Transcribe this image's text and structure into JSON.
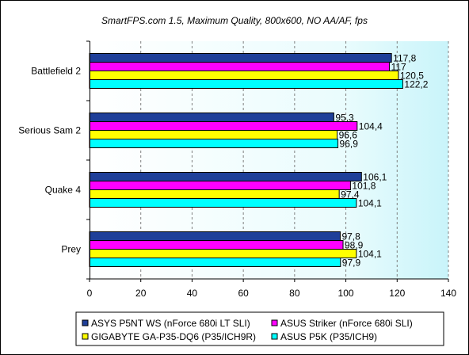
{
  "chart_data": {
    "type": "bar",
    "orientation": "horizontal",
    "title": "SmartFPS.com 1.5, Maximum Quality, 800x600, NO AA/AF, fps",
    "categories": [
      "Battlefield 2",
      "Serious Sam 2",
      "Quake 4",
      "Prey"
    ],
    "series": [
      {
        "name": "ASYS P5NT WS (nForce 680i LT SLI)",
        "color": "#1f3f99",
        "values": [
          117.8,
          95.3,
          106.1,
          97.8
        ],
        "labels": [
          "117,8",
          "95,3",
          "106,1",
          "97,8"
        ]
      },
      {
        "name": "ASUS Striker (nForce 680i SLI)",
        "color": "#ff00ff",
        "values": [
          117,
          104.4,
          101.8,
          98.9
        ],
        "labels": [
          "117",
          "104,4",
          "101,8",
          "98,9"
        ]
      },
      {
        "name": "GIGABYTE GA-P35-DQ6 (P35/ICH9R)",
        "color": "#ffff00",
        "values": [
          120.5,
          96.6,
          97.4,
          104.1
        ],
        "labels": [
          "120,5",
          "96,6",
          "97,4",
          "104,1"
        ]
      },
      {
        "name": "ASUS P5K (P35/ICH9)",
        "color": "#00ffff",
        "values": [
          122.2,
          96.9,
          104.1,
          97.9
        ],
        "labels": [
          "122,2",
          "96,9",
          "104,1",
          "97,9"
        ]
      }
    ],
    "xlim": [
      0,
      140
    ],
    "xticks": [
      "0",
      "20",
      "40",
      "60",
      "80",
      "100",
      "120",
      "140"
    ],
    "grid": "vertical-dashed",
    "legend": "bottom",
    "colors": {
      "plot_bg": "#ffffff",
      "plot_bg_right": "#ccf6fb",
      "grid": "#808080"
    }
  }
}
